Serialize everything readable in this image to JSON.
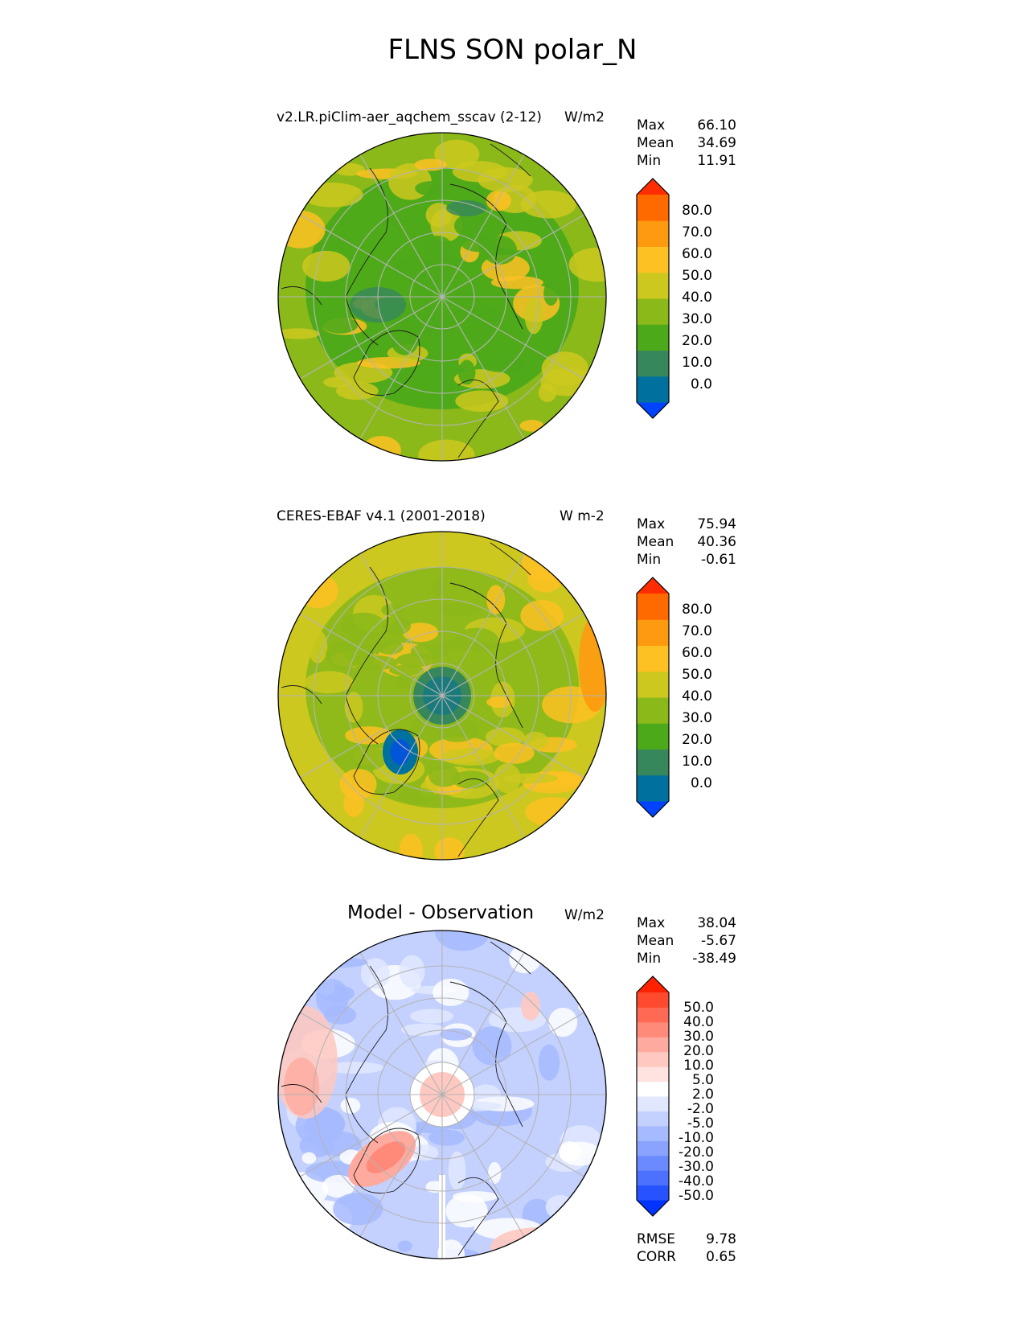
{
  "figure_title": "FLNS SON polar_N",
  "panels": [
    {
      "id": "model",
      "title": "v2.LR.piClim-aer_aqchem_sscav (2-12)",
      "units": "W/m2",
      "stats": [
        {
          "label": "Max",
          "value": "66.10"
        },
        {
          "label": "Mean",
          "value": "34.69"
        },
        {
          "label": "Min",
          "value": "11.91"
        }
      ],
      "colorbar": {
        "tick_labels": [
          "80.0",
          "70.0",
          "60.0",
          "50.0",
          "40.0",
          "30.0",
          "20.0",
          "10.0",
          "0.0"
        ],
        "colors": [
          "#0043ff",
          "#00709e",
          "#36875b",
          "#4ca91a",
          "#8cb91a",
          "#cdc81f",
          "#fdc123",
          "#fe9a10",
          "#ff6a00",
          "#ff2d00"
        ]
      }
    },
    {
      "id": "obs",
      "title": "CERES-EBAF v4.1 (2001-2018)",
      "units": "W m-2",
      "stats": [
        {
          "label": "Max",
          "value": "75.94"
        },
        {
          "label": "Mean",
          "value": "40.36"
        },
        {
          "label": "Min",
          "value": "-0.61"
        }
      ],
      "colorbar": {
        "tick_labels": [
          "80.0",
          "70.0",
          "60.0",
          "50.0",
          "40.0",
          "30.0",
          "20.0",
          "10.0",
          "0.0"
        ],
        "colors": [
          "#0043ff",
          "#00709e",
          "#36875b",
          "#4ca91a",
          "#8cb91a",
          "#cdc81f",
          "#fdc123",
          "#fe9a10",
          "#ff6a00",
          "#ff2d00"
        ]
      }
    },
    {
      "id": "diff",
      "title": "Model - Observation",
      "units": "W/m2",
      "stats": [
        {
          "label": "Max",
          "value": "38.04"
        },
        {
          "label": "Mean",
          "value": "-5.67"
        },
        {
          "label": "Min",
          "value": "-38.49"
        }
      ],
      "colorbar": {
        "tick_labels": [
          "50.0",
          "40.0",
          "30.0",
          "20.0",
          "10.0",
          "5.0",
          "2.0",
          "-2.0",
          "-5.0",
          "-10.0",
          "-20.0",
          "-30.0",
          "-40.0",
          "-50.0"
        ],
        "colors": [
          "#0033ff",
          "#2652ff",
          "#4c70ff",
          "#6b8aff",
          "#8aa3ff",
          "#a6baff",
          "#c4d1ff",
          "#e0e7ff",
          "#ffffff",
          "#ffe3e0",
          "#ffc8c0",
          "#ffaa9e",
          "#ff8a7a",
          "#ff6a55",
          "#ff4a30",
          "#ff2200"
        ]
      },
      "footer_stats": [
        {
          "label": "RMSE",
          "value": "9.78"
        },
        {
          "label": "CORR",
          "value": "0.65"
        }
      ]
    }
  ],
  "map": {
    "projection": "north polar stereographic",
    "gridline_color": "#b4b4b4"
  }
}
